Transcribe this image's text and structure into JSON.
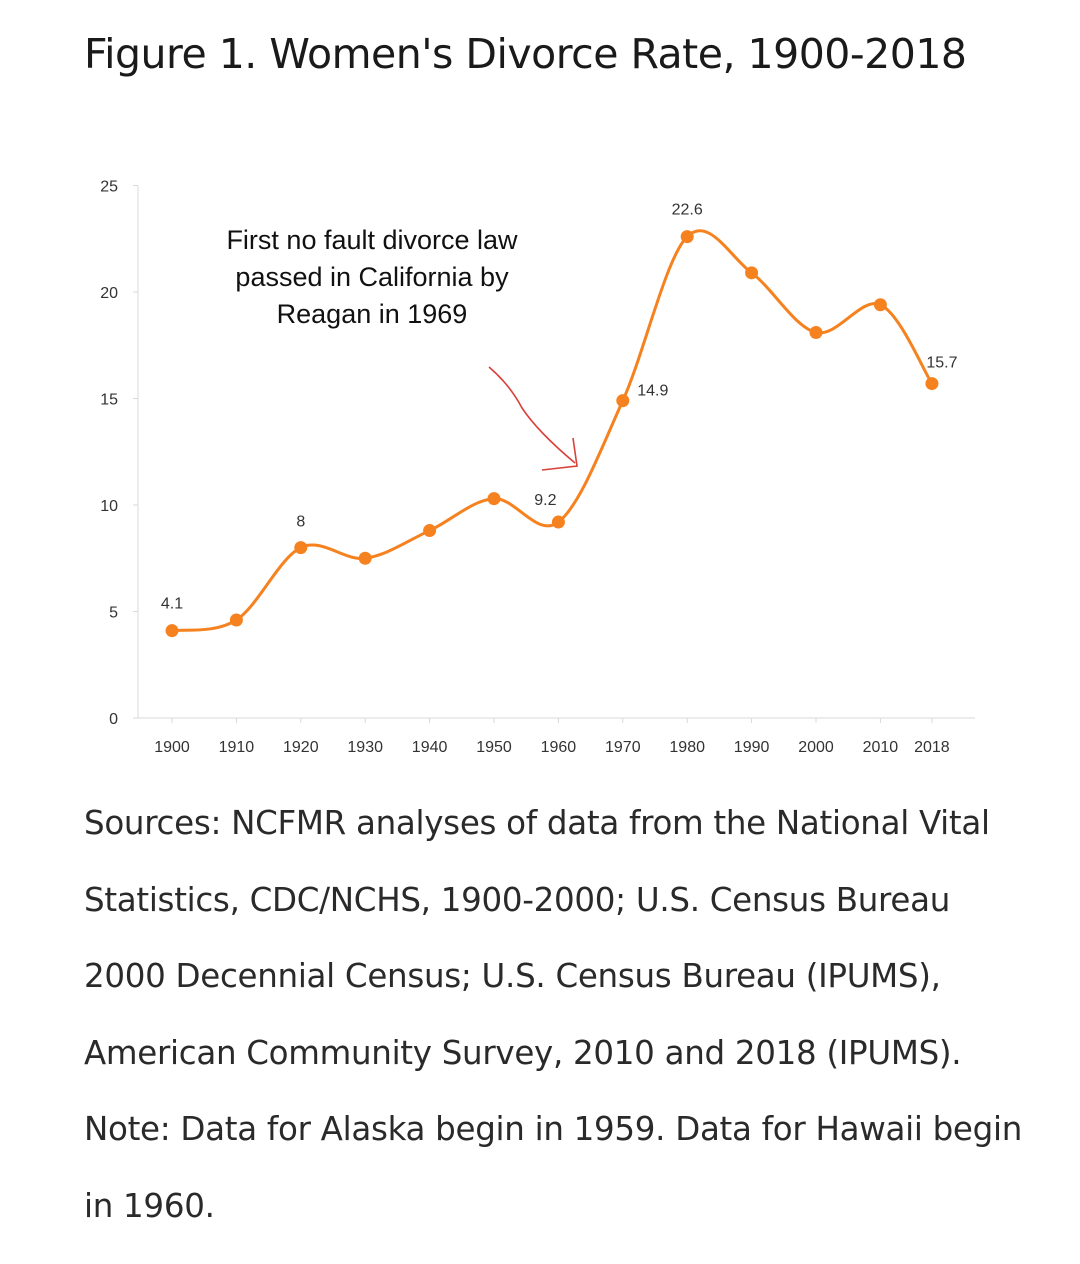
{
  "title": "Figure 1. Women's Divorce Rate, 1900-2018",
  "annotation": "First no fault divorce law\npassed in California by\nReagan in 1969",
  "sources": "Sources: NCFMR analyses of data from the National Vital Statistics, CDC/NCHS, 1900-2000; U.S. Census Bureau 2000 Decennial Census; U.S. Census Bureau (IPUMS), American Community Survey, 2010 and 2018 (IPUMS). Note: Data for Alaska begin in 1959. Data for Hawaii begin in 1960.",
  "colors": {
    "line": "#f5821f",
    "arrow": "#d9423b",
    "axis": "#d9d9d9"
  },
  "chart_data": {
    "type": "line",
    "x": [
      1900,
      1910,
      1920,
      1930,
      1940,
      1950,
      1960,
      1970,
      1980,
      1990,
      2000,
      2010,
      2018
    ],
    "series": [
      {
        "values": [
          4.1,
          4.6,
          8.0,
          7.5,
          8.8,
          10.3,
          9.2,
          14.9,
          22.6,
          20.9,
          18.1,
          19.4,
          15.7
        ]
      }
    ],
    "data_labels": {
      "0": "4.1",
      "2": "8",
      "6": "9.2",
      "7": "14.9",
      "8": "22.6",
      "12": "15.7"
    },
    "yticks": [
      0,
      5,
      10,
      15,
      20,
      25
    ],
    "ylim": [
      0,
      25
    ],
    "grid": false,
    "legend": "none"
  }
}
